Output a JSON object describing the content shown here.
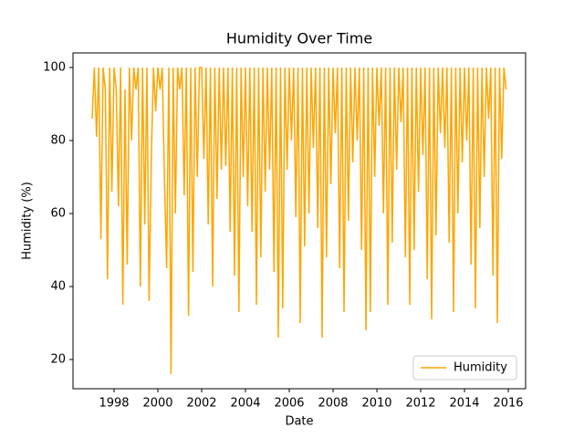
{
  "chart_data": {
    "type": "line",
    "title": "Humidity Over Time",
    "xlabel": "Date",
    "ylabel": "Humidity (%)",
    "x": [
      1997.0,
      1997.1,
      1997.2,
      1997.3,
      1997.4,
      1997.5,
      1997.6,
      1997.7,
      1997.8,
      1997.9,
      1998.0,
      1998.1,
      1998.2,
      1998.3,
      1998.4,
      1998.5,
      1998.6,
      1998.7,
      1998.8,
      1998.9,
      1999.0,
      1999.1,
      1999.2,
      1999.3,
      1999.4,
      1999.5,
      1999.6,
      1999.7,
      1999.8,
      1999.9,
      2000.0,
      2000.1,
      2000.2,
      2000.3,
      2000.4,
      2000.5,
      2000.6,
      2000.7,
      2000.8,
      2000.9,
      2001.0,
      2001.1,
      2001.2,
      2001.3,
      2001.4,
      2001.5,
      2001.6,
      2001.7,
      2001.8,
      2001.9,
      2002.0,
      2002.1,
      2002.2,
      2002.3,
      2002.4,
      2002.5,
      2002.6,
      2002.7,
      2002.8,
      2002.9,
      2003.0,
      2003.1,
      2003.2,
      2003.3,
      2003.4,
      2003.5,
      2003.6,
      2003.7,
      2003.8,
      2003.9,
      2004.0,
      2004.1,
      2004.2,
      2004.3,
      2004.4,
      2004.5,
      2004.6,
      2004.7,
      2004.8,
      2004.9,
      2005.0,
      2005.1,
      2005.2,
      2005.3,
      2005.4,
      2005.5,
      2005.6,
      2005.7,
      2005.8,
      2005.9,
      2006.0,
      2006.1,
      2006.2,
      2006.3,
      2006.4,
      2006.5,
      2006.6,
      2006.7,
      2006.8,
      2006.9,
      2007.0,
      2007.1,
      2007.2,
      2007.3,
      2007.4,
      2007.5,
      2007.6,
      2007.7,
      2007.8,
      2007.9,
      2008.0,
      2008.1,
      2008.2,
      2008.3,
      2008.4,
      2008.5,
      2008.6,
      2008.7,
      2008.8,
      2008.9,
      2009.0,
      2009.1,
      2009.2,
      2009.3,
      2009.4,
      2009.5,
      2009.6,
      2009.7,
      2009.8,
      2009.9,
      2010.0,
      2010.1,
      2010.2,
      2010.3,
      2010.4,
      2010.5,
      2010.6,
      2010.7,
      2010.8,
      2010.9,
      2011.0,
      2011.1,
      2011.2,
      2011.3,
      2011.4,
      2011.5,
      2011.6,
      2011.7,
      2011.8,
      2011.9,
      2012.0,
      2012.1,
      2012.2,
      2012.3,
      2012.4,
      2012.5,
      2012.6,
      2012.7,
      2012.8,
      2012.9,
      2013.0,
      2013.1,
      2013.2,
      2013.3,
      2013.4,
      2013.5,
      2013.6,
      2013.7,
      2013.8,
      2013.9,
      2014.0,
      2014.1,
      2014.2,
      2014.3,
      2014.4,
      2014.5,
      2014.6,
      2014.7,
      2014.8,
      2014.9,
      2015.0,
      2015.1,
      2015.2,
      2015.3,
      2015.4,
      2015.5,
      2015.6,
      2015.7,
      2015.8,
      2015.9
    ],
    "series": [
      {
        "name": "Humidity",
        "color": "orange",
        "values": [
          86,
          100,
          81,
          100,
          53,
          100,
          94,
          42,
          100,
          66,
          100,
          94,
          62,
          100,
          35,
          94,
          46,
          100,
          80,
          100,
          94,
          100,
          40,
          100,
          57,
          100,
          36,
          75,
          100,
          88,
          100,
          94,
          100,
          70,
          45,
          100,
          16,
          100,
          60,
          100,
          94,
          100,
          65,
          100,
          32,
          100,
          44,
          100,
          70,
          100,
          100,
          75,
          100,
          57,
          100,
          40,
          100,
          64,
          100,
          72,
          100,
          73,
          100,
          55,
          100,
          43,
          100,
          33,
          100,
          70,
          100,
          62,
          100,
          55,
          100,
          35,
          100,
          48,
          100,
          66,
          100,
          72,
          100,
          44,
          100,
          26,
          100,
          34,
          100,
          72,
          100,
          80,
          100,
          59,
          100,
          30,
          100,
          51,
          100,
          60,
          100,
          78,
          100,
          56,
          100,
          26,
          100,
          48,
          100,
          68,
          100,
          82,
          100,
          45,
          100,
          33,
          100,
          58,
          100,
          74,
          100,
          80,
          100,
          50,
          100,
          28,
          100,
          33,
          100,
          70,
          100,
          84,
          100,
          60,
          100,
          35,
          100,
          52,
          100,
          72,
          100,
          85,
          100,
          48,
          100,
          35,
          100,
          50,
          100,
          66,
          100,
          76,
          100,
          42,
          100,
          31,
          100,
          54,
          100,
          82,
          100,
          78,
          100,
          52,
          100,
          33,
          100,
          60,
          100,
          74,
          100,
          80,
          100,
          46,
          100,
          34,
          100,
          56,
          100,
          70,
          100,
          86,
          100,
          43,
          100,
          30,
          100,
          75,
          100,
          94
        ]
      }
    ],
    "xlim": [
      1996.125,
      2016.79
    ],
    "xticks": [
      1998,
      2000,
      2002,
      2004,
      2006,
      2008,
      2010,
      2012,
      2014,
      2016
    ],
    "ylim": [
      12,
      104
    ],
    "yticks": [
      20,
      40,
      60,
      80,
      100
    ],
    "legend": "lower right"
  }
}
